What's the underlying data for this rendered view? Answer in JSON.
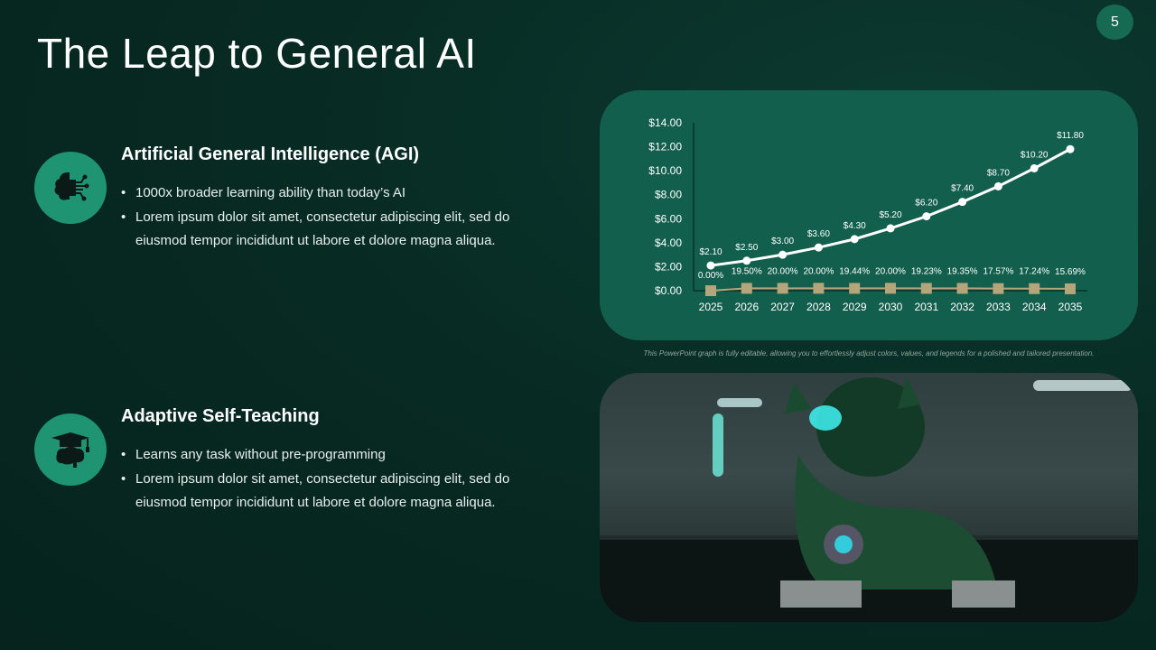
{
  "slide": {
    "title": "The Leap to General AI",
    "page_number": "5"
  },
  "sections": [
    {
      "icon": "brain-circuit-icon",
      "heading": "Artificial General Intelligence (AGI)",
      "bullets": [
        "1000x broader learning ability than today’s AI",
        "Lorem ipsum dolor sit amet, consectetur adipiscing elit, sed do eiusmod tempor incididunt ut labore et dolore magna aliqua."
      ]
    },
    {
      "icon": "graduation-cap-brain-icon",
      "heading": "Adaptive Self-Teaching",
      "bullets": [
        "Learns any task without pre-programming",
        "Lorem ipsum dolor sit amet, consectetur adipiscing elit, sed do eiusmod tempor incididunt ut labore et dolore magna aliqua."
      ]
    }
  ],
  "caption": "This PowerPoint graph is fully editable, allowing you to effortlessly adjust colors, values, and legends for a polished and tailored presentation.",
  "image": {
    "description_icon": "robot-dog-image"
  },
  "colors": {
    "accent": "#1f9473",
    "chart_bg": "#135f4e",
    "line1": "#ffffff",
    "line2": "#b5a57a"
  },
  "chart_data": {
    "type": "line",
    "categories": [
      "2025",
      "2026",
      "2027",
      "2028",
      "2029",
      "2030",
      "2031",
      "2032",
      "2033",
      "2034",
      "2035"
    ],
    "ylim": [
      0,
      14
    ],
    "yticks": [
      "$0.00",
      "$2.00",
      "$4.00",
      "$6.00",
      "$8.00",
      "$10.00",
      "$12.00",
      "$14.00"
    ],
    "grid": false,
    "series": [
      {
        "values": [
          2.1,
          2.5,
          3.0,
          3.6,
          4.3,
          5.2,
          6.2,
          7.4,
          8.7,
          10.2,
          11.8
        ],
        "labels": [
          "$2.10",
          "$2.50",
          "$3.00",
          "$3.60",
          "$4.30",
          "$5.20",
          "$6.20",
          "$7.40",
          "$8.70",
          "$10.20",
          "$11.80"
        ],
        "marker": "circle"
      },
      {
        "values": [
          0,
          0.195,
          0.2,
          0.2,
          0.1944,
          0.2,
          0.1923,
          0.1935,
          0.1757,
          0.1724,
          0.1569
        ],
        "labels": [
          "0.00%",
          "19.50%",
          "20.00%",
          "20.00%",
          "19.44%",
          "20.00%",
          "19.23%",
          "19.35%",
          "17.57%",
          "17.24%",
          "15.69%"
        ],
        "marker": "square"
      }
    ]
  }
}
